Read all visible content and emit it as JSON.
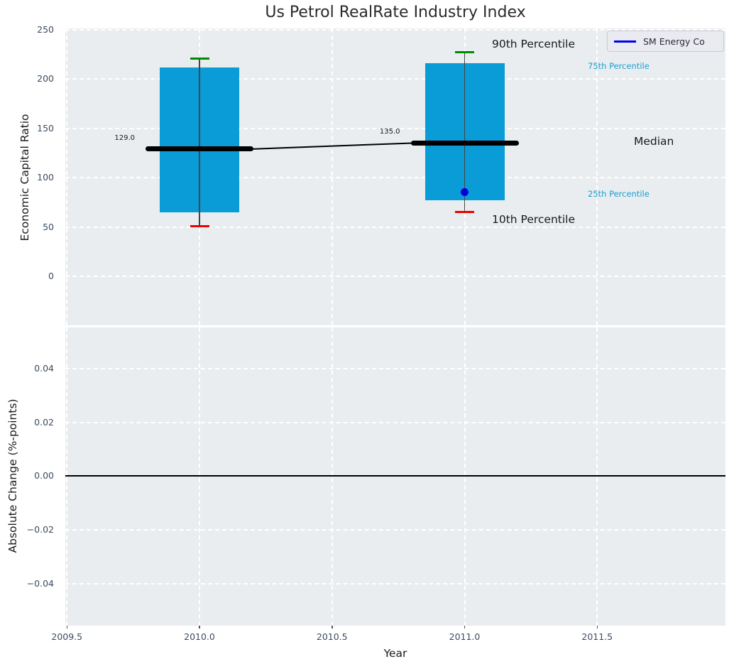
{
  "title": "Us Petrol RealRate Industry Index",
  "colors": {
    "axes_background": "#e9edef",
    "gridline": "#ffffff",
    "bar_fill": "#0a9cd6",
    "p90_cap": "#008c00",
    "p10_cap": "#ee0000",
    "median_line": "#000000",
    "company_dot": "#0000dd",
    "legend_line": "#0000ee",
    "percentile_label_text": "#1c9fd1",
    "annotation_text": "#1a1a1a",
    "tick_label_text": "#3c4c60"
  },
  "chart_data": [
    {
      "type": "box",
      "title": "Us Petrol RealRate Industry Index",
      "xlabel": "Year",
      "ylabel": "Economic Capital Ratio",
      "grid": true,
      "grid_style": "white dashed",
      "legend_position": "upper right",
      "legend_entries": [
        "SM Energy Co"
      ],
      "xticks": [
        2009.5,
        2010.0,
        2010.5,
        2011.0,
        2011.5
      ],
      "xlim": [
        2009.5,
        2011.99
      ],
      "yticks": [
        250,
        200,
        150,
        100,
        50,
        0
      ],
      "ylim": [
        -49.7,
        251.3
      ],
      "box_width_years": 0.3,
      "series": [
        {
          "year": 2010,
          "p10": 51,
          "p25": 65,
          "median": 129.0,
          "p75": 212,
          "p90": 221,
          "median_label": "129.0"
        },
        {
          "year": 2011,
          "p10": 65,
          "p25": 77,
          "median": 135.0,
          "p75": 216,
          "p90": 227,
          "median_label": "135.0"
        }
      ],
      "company_points": [
        {
          "name": "SM Energy Co",
          "year": 2011,
          "value": 85
        }
      ],
      "annotations": {
        "p90": "90th Percentile",
        "p75": "75th Percentile",
        "median": "Median",
        "p25": "25th Percentile",
        "p10": "10th Percentile"
      }
    },
    {
      "type": "line",
      "xlabel": "Year",
      "ylabel": "Absolute Change (%-points)",
      "grid": true,
      "grid_style": "white dashed",
      "xticks": [
        2009.5,
        2010.0,
        2010.5,
        2011.0,
        2011.5
      ],
      "yticks": [
        0.04,
        0.02,
        0.0,
        -0.02,
        -0.04
      ],
      "ylim": [
        -0.0555,
        0.0555
      ],
      "series": [],
      "zero_line": 0.0
    }
  ]
}
